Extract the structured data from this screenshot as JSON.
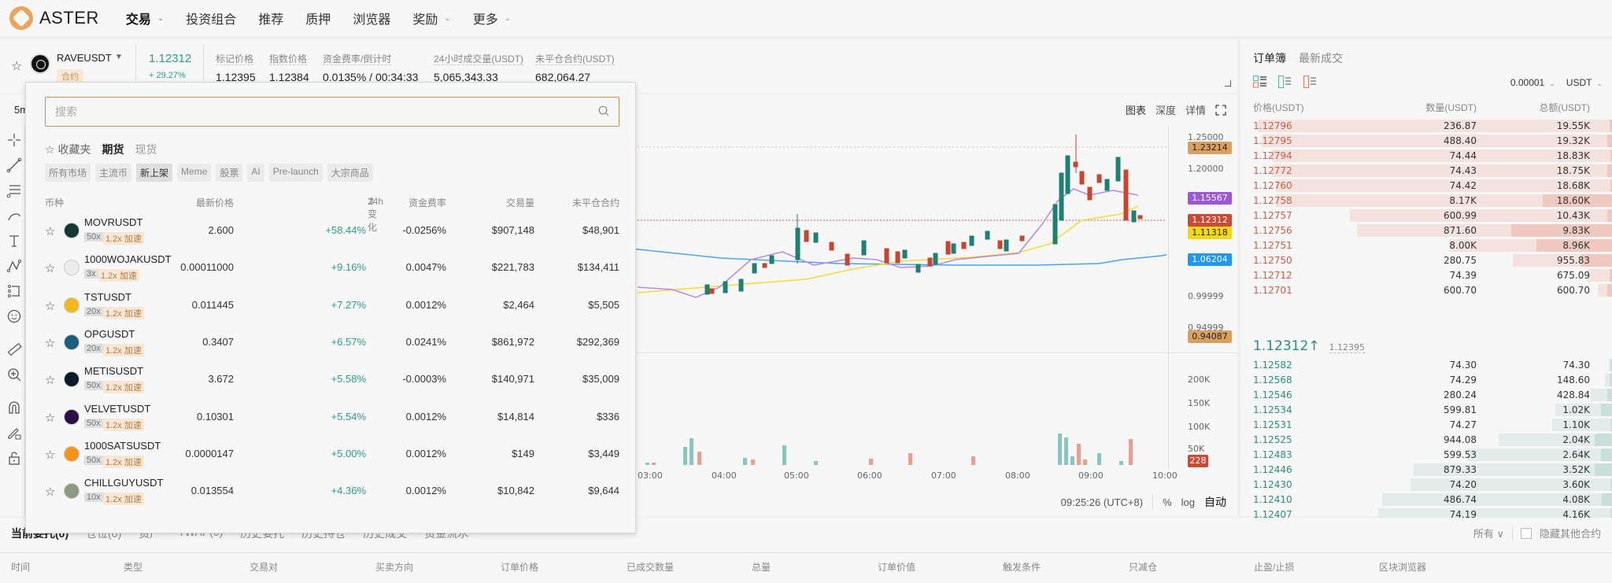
{
  "nav": {
    "brand": "ASTER",
    "items": [
      {
        "label": "交易",
        "has_menu": true,
        "active": true
      },
      {
        "label": "投资组合",
        "has_menu": false
      },
      {
        "label": "推荐",
        "has_menu": false
      },
      {
        "label": "质押",
        "has_menu": false
      },
      {
        "label": "浏览器",
        "has_menu": false
      },
      {
        "label": "奖励",
        "has_menu": true
      },
      {
        "label": "更多",
        "has_menu": true
      }
    ],
    "chevron": "⌄"
  },
  "ticker": {
    "symbol": "RAVEUSDT",
    "type": "合约",
    "last_price": "1.12312",
    "change_pct": "+ 29.27%",
    "stats": [
      {
        "label": "标记价格",
        "value": "1.12395"
      },
      {
        "label": "指数价格",
        "value": "1.12384"
      },
      {
        "label": "资金费率/倒计时",
        "value": "0.0135% / 00:34:33"
      },
      {
        "label": "24小时成交量(USDT)",
        "value": "5,065,343.33"
      },
      {
        "label": "未平仓合约(USDT)",
        "value": "682,064.27"
      }
    ]
  },
  "chart": {
    "interval": "5m",
    "tabs": [
      "图表",
      "深度",
      "详情"
    ],
    "price_ticks": [
      "1.25000",
      "1.20000",
      "0.99999",
      "0.94999"
    ],
    "price_labels": [
      {
        "value": "1.23214",
        "color": "#d9a05f",
        "text_color": "#222"
      },
      {
        "value": "1.15567",
        "color": "#9b59d6",
        "text_color": "#ffffff"
      },
      {
        "value": "1.12312",
        "color": "#c94b35",
        "text_color": "#ffffff"
      },
      {
        "value": "1.11318",
        "color": "#f5d90a",
        "text_color": "#222"
      },
      {
        "value": "1.06204",
        "color": "#2196f3",
        "text_color": "#ffffff"
      },
      {
        "value": "0.94087",
        "color": "#d9a05f",
        "text_color": "#222"
      }
    ],
    "volume_ticks": [
      "200K",
      "150K",
      "100K",
      "50K"
    ],
    "volume_label": "228",
    "time_ticks": [
      "03:00",
      "04:00",
      "05:00",
      "06:00",
      "07:00",
      "08:00",
      "09:00",
      "10:00"
    ],
    "clock": "09:25:26 (UTC+8)",
    "footer_opts": [
      "%",
      "log",
      "自动"
    ]
  },
  "chart_data": {
    "type": "candlestick",
    "title": "RAVEUSDT 5m",
    "x": [
      "03:00",
      "04:00",
      "05:00",
      "06:00",
      "07:00",
      "08:00",
      "09:00",
      "10:00"
    ],
    "ylim": [
      0.93,
      1.26
    ],
    "annotations": {
      "high_line": 1.23214,
      "low_line": 0.94087,
      "last": 1.12312
    },
    "series": [
      {
        "name": "MA (purple)",
        "last": 1.15567
      },
      {
        "name": "MA (yellow)",
        "last": 1.11318
      },
      {
        "name": "MA (blue)",
        "last": 1.06204
      }
    ],
    "volume": {
      "ylim": [
        0,
        220000
      ],
      "last": 228
    }
  },
  "orderbook": {
    "tabs": [
      "订单簿",
      "最新成交"
    ],
    "precision": "0.00001",
    "unit": "USDT",
    "headers": [
      "价格(USDT)",
      "数量(USDT)",
      "总额(USDT)"
    ],
    "asks": [
      {
        "price": "1.12796",
        "qty": "236.87",
        "total": "19.55K",
        "d": 100,
        "q": 2
      },
      {
        "price": "1.12795",
        "qty": "488.40",
        "total": "19.32K",
        "d": 99,
        "q": 4
      },
      {
        "price": "1.12794",
        "qty": "74.44",
        "total": "18.83K",
        "d": 96,
        "q": 1
      },
      {
        "price": "1.12772",
        "qty": "74.43",
        "total": "18.75K",
        "d": 96,
        "q": 4
      },
      {
        "price": "1.12760",
        "qty": "74.42",
        "total": "18.68K",
        "d": 95,
        "q": 1
      },
      {
        "price": "1.12758",
        "qty": "8.17K",
        "total": "18.60K",
        "d": 95,
        "q": 55
      },
      {
        "price": "1.12757",
        "qty": "600.99",
        "total": "10.43K",
        "d": 74,
        "q": 4
      },
      {
        "price": "1.12756",
        "qty": "871.60",
        "total": "9.83K",
        "d": 72,
        "q": 80
      },
      {
        "price": "1.12751",
        "qty": "8.00K",
        "total": "8.96K",
        "d": 46,
        "q": 60
      },
      {
        "price": "1.12750",
        "qty": "280.75",
        "total": "955.83",
        "d": 28,
        "q": 25
      },
      {
        "price": "1.12712",
        "qty": "74.39",
        "total": "675.09",
        "d": 7,
        "q": 2
      },
      {
        "price": "1.12701",
        "qty": "600.70",
        "total": "600.70",
        "d": 4,
        "q": 4
      }
    ],
    "mid_price": "1.12312",
    "mid_arrow": "↑",
    "mark_price": "1.12395",
    "bids": [
      {
        "price": "1.12582",
        "qty": "74.30",
        "total": "74.30",
        "d": 1,
        "q": 1
      },
      {
        "price": "1.12568",
        "qty": "74.29",
        "total": "148.60",
        "d": 2,
        "q": 2
      },
      {
        "price": "1.12546",
        "qty": "280.24",
        "total": "428.84",
        "d": 6,
        "q": 4
      },
      {
        "price": "1.12534",
        "qty": "599.81",
        "total": "1.02K",
        "d": 16,
        "q": 9
      },
      {
        "price": "1.12531",
        "qty": "74.27",
        "total": "1.10K",
        "d": 17,
        "q": 1
      },
      {
        "price": "1.12525",
        "qty": "944.08",
        "total": "2.04K",
        "d": 32,
        "q": 14
      },
      {
        "price": "1.12483",
        "qty": "599.53",
        "total": "2.64K",
        "d": 41,
        "q": 9
      },
      {
        "price": "1.12446",
        "qty": "879.33",
        "total": "3.52K",
        "d": 56,
        "q": 14
      },
      {
        "price": "1.12430",
        "qty": "74.20",
        "total": "3.60K",
        "d": 57,
        "q": 1
      },
      {
        "price": "1.12410",
        "qty": "486.74",
        "total": "4.08K",
        "d": 65,
        "q": 8
      },
      {
        "price": "1.12407",
        "qty": "74.19",
        "total": "4.16K",
        "d": 66,
        "q": 1
      },
      {
        "price": "1.12406",
        "qty": "868.90",
        "total": "5.02K",
        "d": 80,
        "q": 14
      }
    ]
  },
  "market_popup": {
    "search_placeholder": "搜索",
    "fav_label": "收藏夹",
    "tabs": [
      "期货",
      "现货"
    ],
    "categories": [
      "所有市场",
      "主流币",
      "新上架",
      "Meme",
      "股票",
      "AI",
      "Pre-launch",
      "大宗商品"
    ],
    "active_category": "新上架",
    "headers": [
      "币种",
      "最新价格",
      "24h变化",
      "资金费率",
      "交易量",
      "未平仓合约"
    ],
    "sort_icon": "⇕",
    "boost_label": "1.2x 加速",
    "rows": [
      {
        "symbol": "MOVRUSDT",
        "leverage": "50x",
        "price": "2.600",
        "change": "+58.44%",
        "funding": "-0.0256%",
        "volume": "$907,148",
        "oi": "$48,901",
        "color": "#123a33"
      },
      {
        "symbol": "1000WOJAKUSDT",
        "leverage": "3x",
        "price": "0.00011000",
        "change": "+9.16%",
        "funding": "0.0047%",
        "volume": "$221,783",
        "oi": "$134,411",
        "color": "#ececec"
      },
      {
        "symbol": "TSTUSDT",
        "leverage": "20x",
        "price": "0.011445",
        "change": "+7.27%",
        "funding": "0.0012%",
        "volume": "$2,464",
        "oi": "$5,505",
        "color": "#f3b81c"
      },
      {
        "symbol": "OPGUSDT",
        "leverage": "20x",
        "price": "0.3407",
        "change": "+6.57%",
        "funding": "0.0241%",
        "volume": "$861,972",
        "oi": "$292,369",
        "color": "#1b5f7a"
      },
      {
        "symbol": "METISUSDT",
        "leverage": "50x",
        "price": "3.672",
        "change": "+5.58%",
        "funding": "-0.0003%",
        "volume": "$140,971",
        "oi": "$35,009",
        "color": "#0a1a2a"
      },
      {
        "symbol": "VELVETUSDT",
        "leverage": "50x",
        "price": "0.10301",
        "change": "+5.54%",
        "funding": "0.0012%",
        "volume": "$14,814",
        "oi": "$336",
        "color": "#2a1048"
      },
      {
        "symbol": "1000SATSUSDT",
        "leverage": "50x",
        "price": "0.0000147",
        "change": "+5.00%",
        "funding": "0.0012%",
        "volume": "$149",
        "oi": "$3,449",
        "color": "#f7931a"
      },
      {
        "symbol": "CHILLGUYUSDT",
        "leverage": "10x",
        "price": "0.013554",
        "change": "+4.36%",
        "funding": "0.0012%",
        "volume": "$10,842",
        "oi": "$9,644",
        "color": "#8c9a80"
      }
    ]
  },
  "bottom": {
    "tabs": [
      "当前委托(0)",
      "仓位(0)",
      "资产",
      "TWAP(0)",
      "历史委托",
      "历史持仓",
      "历史成交",
      "资金流水"
    ],
    "filter": "所有",
    "hide_other": "隐藏其他合约",
    "columns": [
      "时间",
      "类型",
      "交易对",
      "买卖方向",
      "订单价格",
      "已成交数量",
      "总量",
      "订单价值",
      "触发条件",
      "只减仓",
      "止盈/止损",
      "区块浏览器"
    ]
  },
  "colors": {
    "up": "#2a9d8f",
    "down": "#d45a42",
    "accent": "#c88f58"
  }
}
